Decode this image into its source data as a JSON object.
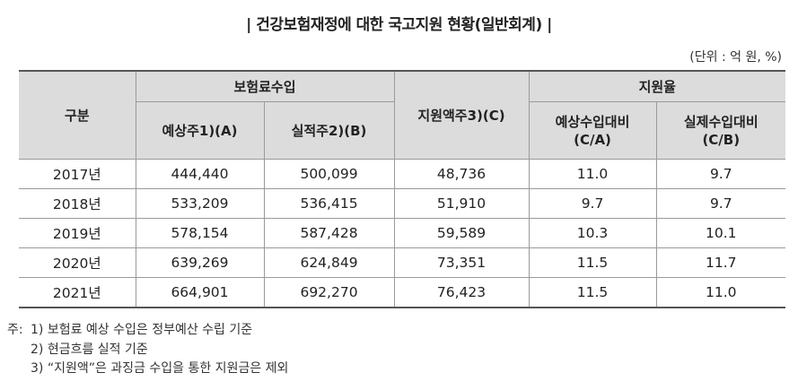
{
  "title": "| 건강보험재정에 대한 국고지원 현황(일반회계) |",
  "unit": "(단위 : 억 원, %)",
  "table": {
    "header": {
      "category": "구분",
      "premium_group": "보험료수입",
      "expected": "예상주1)(A)",
      "actual": "실적주2)(B)",
      "support_amount": "지원액주3)(C)",
      "rate_group": "지원율",
      "rate_expected_line1": "예상수입대비",
      "rate_expected_line2": "(C/A)",
      "rate_actual_line1": "실제수입대비",
      "rate_actual_line2": "(C/B)"
    },
    "rows": [
      {
        "year": "2017년",
        "expected": "444,440",
        "actual": "500,099",
        "support": "48,736",
        "rate_expected": "11.0",
        "rate_actual": "9.7"
      },
      {
        "year": "2018년",
        "expected": "533,209",
        "actual": "536,415",
        "support": "51,910",
        "rate_expected": "9.7",
        "rate_actual": "9.7"
      },
      {
        "year": "2019년",
        "expected": "578,154",
        "actual": "587,428",
        "support": "59,589",
        "rate_expected": "10.3",
        "rate_actual": "10.1"
      },
      {
        "year": "2020년",
        "expected": "639,269",
        "actual": "624,849",
        "support": "73,351",
        "rate_expected": "11.5",
        "rate_actual": "11.7"
      },
      {
        "year": "2021년",
        "expected": "664,901",
        "actual": "692,270",
        "support": "76,423",
        "rate_expected": "11.5",
        "rate_actual": "11.0"
      }
    ]
  },
  "notes": {
    "prefix": "주:",
    "items": [
      "1) 보험료 예상 수입은 정부예산 수립 기준",
      "2) 현금흐름 실적 기준",
      "3) “지원액”은 과징금 수입을 통한 지원금은 제외"
    ]
  }
}
